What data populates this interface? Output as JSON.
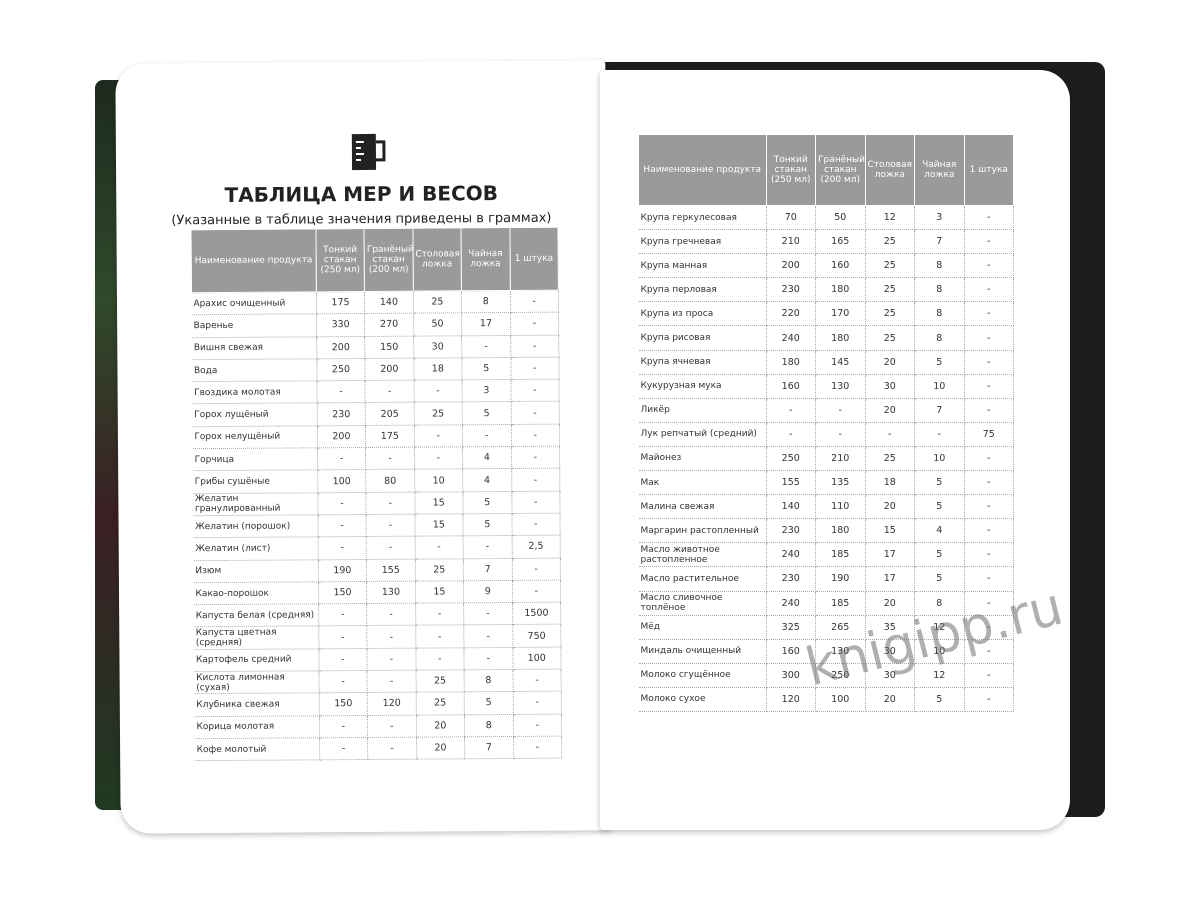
{
  "left_page": {
    "title": "ТАБЛИЦА МЕР И ВЕСОВ",
    "subtitle": "(Указанные в таблице значения приведены в граммах)",
    "table": {
      "header": [
        "Наименование продукта",
        "Тонкий стакан (250 мл)",
        "Гранёный стакан (200 мл)",
        "Столовая ложка",
        "Чайная ложка",
        "1 штука"
      ],
      "rows": [
        [
          "Арахис очищенный",
          "175",
          "140",
          "25",
          "8",
          "-"
        ],
        [
          "Варенье",
          "330",
          "270",
          "50",
          "17",
          "-"
        ],
        [
          "Вишня свежая",
          "200",
          "150",
          "30",
          "-",
          "-"
        ],
        [
          "Вода",
          "250",
          "200",
          "18",
          "5",
          "-"
        ],
        [
          "Гвоздика молотая",
          "-",
          "-",
          "-",
          "3",
          "-"
        ],
        [
          "Горох лущёный",
          "230",
          "205",
          "25",
          "5",
          "-"
        ],
        [
          "Горох нелущёный",
          "200",
          "175",
          "-",
          "-",
          "-"
        ],
        [
          "Горчица",
          "-",
          "-",
          "-",
          "4",
          "-"
        ],
        [
          "Грибы сушёные",
          "100",
          "80",
          "10",
          "4",
          "-"
        ],
        [
          "Желатин гранулированный",
          "-",
          "-",
          "15",
          "5",
          "-"
        ],
        [
          "Желатин (порошок)",
          "-",
          "-",
          "15",
          "5",
          "-"
        ],
        [
          "Желатин (лист)",
          "-",
          "-",
          "-",
          "-",
          "2,5"
        ],
        [
          "Изюм",
          "190",
          "155",
          "25",
          "7",
          "-"
        ],
        [
          "Какао-порошок",
          "150",
          "130",
          "15",
          "9",
          "-"
        ],
        [
          "Капуста белая (средняя)",
          "-",
          "-",
          "-",
          "-",
          "1500"
        ],
        [
          "Капуста цветная (средняя)",
          "-",
          "-",
          "-",
          "-",
          "750"
        ],
        [
          "Картофель средний",
          "-",
          "-",
          "-",
          "-",
          "100"
        ],
        [
          "Кислота лимонная (сухая)",
          "-",
          "-",
          "25",
          "8",
          "-"
        ],
        [
          "Клубника свежая",
          "150",
          "120",
          "25",
          "5",
          "-"
        ],
        [
          "Корица молотая",
          "-",
          "-",
          "20",
          "8",
          "-"
        ],
        [
          "Кофе молотый",
          "-",
          "-",
          "20",
          "7",
          "-"
        ]
      ]
    }
  },
  "right_page": {
    "table": {
      "header": [
        "Наименование продукта",
        "Тонкий стакан (250 мл)",
        "Гранёный стакан (200 мл)",
        "Столовая ложка",
        "Чайная ложка",
        "1 штука"
      ],
      "rows": [
        [
          "Крупа геркулесовая",
          "70",
          "50",
          "12",
          "3",
          "-"
        ],
        [
          "Крупа гречневая",
          "210",
          "165",
          "25",
          "7",
          "-"
        ],
        [
          "Крупа манная",
          "200",
          "160",
          "25",
          "8",
          "-"
        ],
        [
          "Крупа перловая",
          "230",
          "180",
          "25",
          "8",
          "-"
        ],
        [
          "Крупа из проса",
          "220",
          "170",
          "25",
          "8",
          "-"
        ],
        [
          "Крупа рисовая",
          "240",
          "180",
          "25",
          "8",
          "-"
        ],
        [
          "Крупа ячневая",
          "180",
          "145",
          "20",
          "5",
          "-"
        ],
        [
          "Кукурузная мука",
          "160",
          "130",
          "30",
          "10",
          "-"
        ],
        [
          "Ликёр",
          "-",
          "-",
          "20",
          "7",
          "-"
        ],
        [
          "Лук репчатый (средний)",
          "-",
          "-",
          "-",
          "-",
          "75"
        ],
        [
          "Майонез",
          "250",
          "210",
          "25",
          "10",
          "-"
        ],
        [
          "Мак",
          "155",
          "135",
          "18",
          "5",
          "-"
        ],
        [
          "Малина свежая",
          "140",
          "110",
          "20",
          "5",
          "-"
        ],
        [
          "Маргарин растопленный",
          "230",
          "180",
          "15",
          "4",
          "-"
        ],
        [
          "Масло животное растопленное",
          "240",
          "185",
          "17",
          "5",
          "-"
        ],
        [
          "Масло растительное",
          "230",
          "190",
          "17",
          "5",
          "-"
        ],
        [
          "Масло сливочное топлёное",
          "240",
          "185",
          "20",
          "8",
          "-"
        ],
        [
          "Мёд",
          "325",
          "265",
          "35",
          "12",
          "-"
        ],
        [
          "Миндаль очищенный",
          "160",
          "130",
          "30",
          "10",
          "-"
        ],
        [
          "Молоко сгущённое",
          "300",
          "250",
          "30",
          "12",
          "-"
        ],
        [
          "Молоко сухое",
          "120",
          "100",
          "20",
          "5",
          "-"
        ]
      ]
    }
  },
  "watermark": "knigipp.ru"
}
